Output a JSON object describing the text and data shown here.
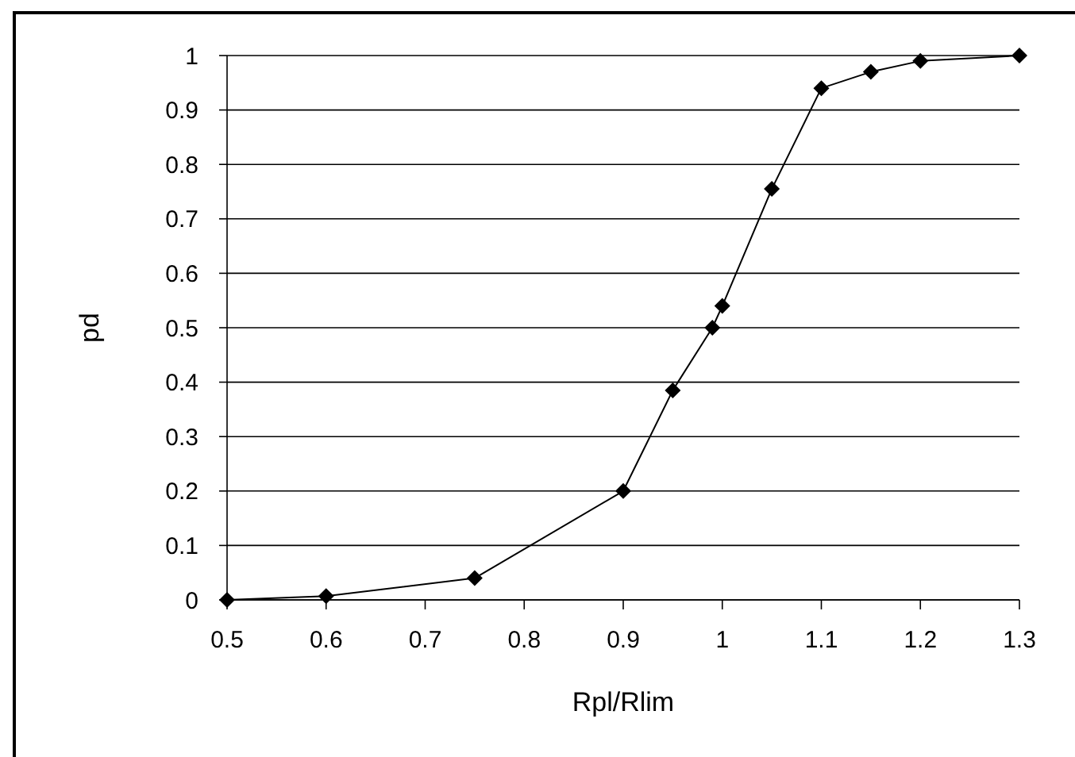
{
  "chart_data": {
    "type": "line",
    "xlabel": "Rpl/Rlim",
    "ylabel": "pd",
    "x": [
      0.5,
      0.6,
      0.75,
      0.9,
      0.95,
      0.99,
      1.0,
      1.05,
      1.1,
      1.15,
      1.2,
      1.3
    ],
    "series": [
      {
        "color": "#000000",
        "values": [
          0,
          0.007,
          0.04,
          0.2,
          0.385,
          0.5,
          0.54,
          0.755,
          0.94,
          0.97,
          0.99,
          1
        ]
      }
    ],
    "xlim": [
      0.5,
      1.3
    ],
    "xticks": [
      0.5,
      0.6,
      0.7,
      0.8,
      0.9,
      1,
      1.1,
      1.2,
      1.3
    ],
    "ylim": [
      0,
      1
    ],
    "yticks": [
      0,
      0.1,
      0.2,
      0.3,
      0.4,
      0.5,
      0.6,
      0.7,
      0.8,
      0.9,
      1
    ],
    "grid": "y",
    "marker": "diamond",
    "line_style": "solid"
  }
}
